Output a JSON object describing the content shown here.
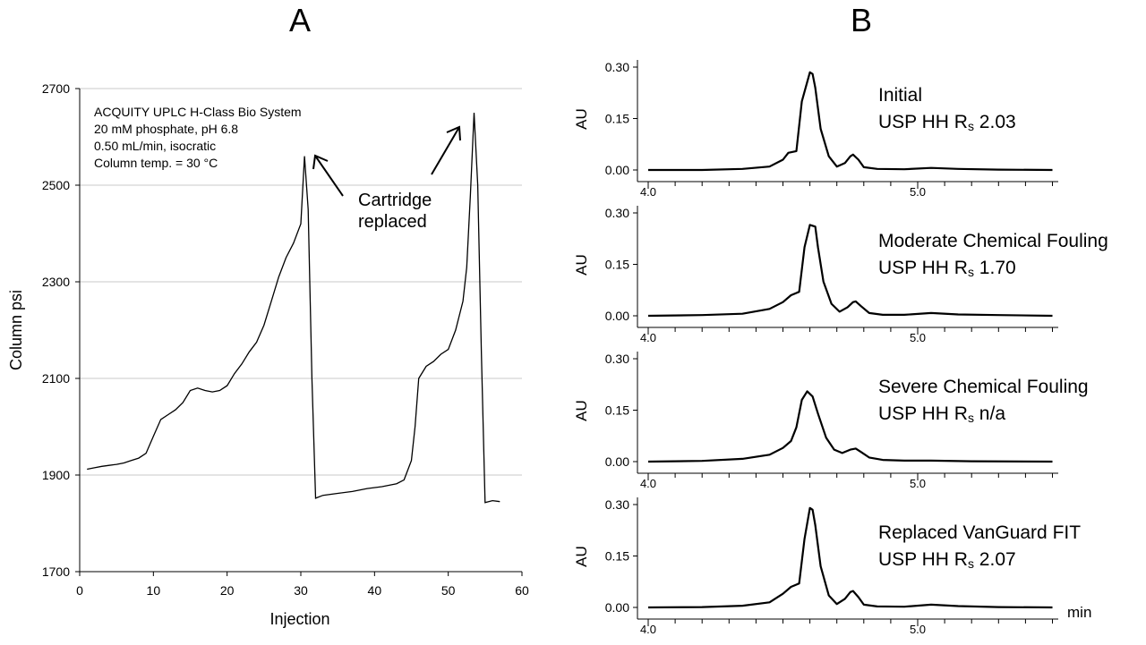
{
  "panel_a": {
    "label": "A",
    "annotation_lines": [
      "ACQUITY UPLC H-Class Bio System",
      "20 mM phosphate, pH 6.8",
      "0.50 mL/min, isocratic",
      "Column temp. = 30 °C"
    ],
    "callout_lines": [
      "Cartridge",
      "replaced"
    ]
  },
  "panel_b": {
    "label": "B",
    "x_unit": "min"
  },
  "colors": {
    "line": "#000000",
    "grid": "#c8c8c8"
  },
  "chart_data": [
    {
      "type": "line",
      "title": "",
      "xlabel": "Injection",
      "ylabel": "Column psi",
      "xlim": [
        0,
        60
      ],
      "ylim": [
        1700,
        2700
      ],
      "xticks": [
        0,
        10,
        20,
        30,
        40,
        50,
        60
      ],
      "yticks": [
        1700,
        1900,
        2100,
        2300,
        2500,
        2700
      ],
      "grid": "horizontal",
      "series": [
        {
          "x": [
            1,
            2,
            3,
            4,
            5,
            6,
            7,
            8,
            9,
            10,
            11,
            12,
            13,
            14,
            15,
            16,
            17,
            18,
            19,
            20,
            21,
            22,
            23,
            24,
            25,
            26,
            27,
            28,
            29,
            30,
            30.5,
            31,
            31.5,
            32,
            33,
            35,
            37,
            39,
            41,
            43,
            44,
            45,
            45.5,
            46,
            47,
            48,
            49,
            50,
            51,
            52,
            52.5,
            53,
            53.5,
            54,
            54.5,
            55,
            56,
            57
          ],
          "y": [
            1912,
            1915,
            1918,
            1920,
            1922,
            1925,
            1930,
            1935,
            1945,
            1980,
            2015,
            2025,
            2035,
            2050,
            2075,
            2080,
            2075,
            2072,
            2075,
            2085,
            2110,
            2130,
            2155,
            2175,
            2210,
            2260,
            2310,
            2350,
            2380,
            2420,
            2560,
            2450,
            2100,
            1852,
            1858,
            1862,
            1866,
            1872,
            1876,
            1882,
            1890,
            1930,
            2000,
            2100,
            2125,
            2135,
            2150,
            2160,
            2200,
            2260,
            2330,
            2480,
            2650,
            2500,
            2150,
            1843,
            1847,
            1845
          ]
        }
      ]
    },
    {
      "type": "line",
      "title": "Initial",
      "annotation": "USP HH R",
      "annotation_sub": "s",
      "annotation_value": "2.03",
      "ylabel": "AU",
      "xlim": [
        4.0,
        5.5
      ],
      "ylim": [
        0,
        0.3
      ],
      "xticks": [
        "4.0",
        "5.0"
      ],
      "yticks": [
        "0.00",
        "0.15",
        "0.30"
      ],
      "series": [
        {
          "x": [
            4.0,
            4.2,
            4.35,
            4.45,
            4.5,
            4.52,
            4.55,
            4.57,
            4.6,
            4.61,
            4.62,
            4.64,
            4.67,
            4.7,
            4.73,
            4.75,
            4.76,
            4.78,
            4.8,
            4.85,
            4.95,
            5.05,
            5.15,
            5.3,
            5.5
          ],
          "y": [
            0.0,
            0.0,
            0.003,
            0.01,
            0.03,
            0.05,
            0.055,
            0.2,
            0.285,
            0.28,
            0.24,
            0.12,
            0.04,
            0.01,
            0.02,
            0.04,
            0.045,
            0.03,
            0.008,
            0.003,
            0.002,
            0.006,
            0.003,
            0.001,
            0.0
          ]
        }
      ]
    },
    {
      "type": "line",
      "title": "Moderate Chemical Fouling",
      "annotation": "USP HH R",
      "annotation_sub": "s",
      "annotation_value": "1.70",
      "ylabel": "AU",
      "xlim": [
        4.0,
        5.5
      ],
      "ylim": [
        0,
        0.3
      ],
      "xticks": [
        "4.0",
        "5.0"
      ],
      "yticks": [
        "0.00",
        "0.15",
        "0.30"
      ],
      "series": [
        {
          "x": [
            4.0,
            4.2,
            4.35,
            4.45,
            4.5,
            4.53,
            4.56,
            4.58,
            4.6,
            4.62,
            4.63,
            4.65,
            4.68,
            4.71,
            4.74,
            4.76,
            4.77,
            4.79,
            4.82,
            4.87,
            4.95,
            5.05,
            5.15,
            5.3,
            5.5
          ],
          "y": [
            0.0,
            0.002,
            0.006,
            0.02,
            0.04,
            0.06,
            0.07,
            0.2,
            0.265,
            0.26,
            0.2,
            0.1,
            0.035,
            0.012,
            0.025,
            0.04,
            0.042,
            0.028,
            0.008,
            0.003,
            0.003,
            0.008,
            0.004,
            0.002,
            0.0
          ]
        }
      ]
    },
    {
      "type": "line",
      "title": "Severe Chemical Fouling",
      "annotation": "USP HH R",
      "annotation_sub": "s",
      "annotation_value": "n/a",
      "ylabel": "AU",
      "xlim": [
        4.0,
        5.5
      ],
      "ylim": [
        0,
        0.3
      ],
      "xticks": [
        "4.0",
        "5.0"
      ],
      "yticks": [
        "0.00",
        "0.15",
        "0.30"
      ],
      "series": [
        {
          "x": [
            4.0,
            4.2,
            4.35,
            4.45,
            4.5,
            4.53,
            4.55,
            4.57,
            4.59,
            4.61,
            4.63,
            4.66,
            4.69,
            4.72,
            4.75,
            4.77,
            4.79,
            4.82,
            4.87,
            4.95,
            5.05,
            5.2,
            5.5
          ],
          "y": [
            0.0,
            0.002,
            0.008,
            0.02,
            0.04,
            0.06,
            0.1,
            0.18,
            0.205,
            0.19,
            0.14,
            0.07,
            0.035,
            0.025,
            0.035,
            0.038,
            0.028,
            0.012,
            0.005,
            0.003,
            0.003,
            0.001,
            0.0
          ]
        }
      ]
    },
    {
      "type": "line",
      "title": "Replaced VanGuard FIT",
      "annotation": "USP HH R",
      "annotation_sub": "s",
      "annotation_value": "2.07",
      "ylabel": "AU",
      "xlim": [
        4.0,
        5.5
      ],
      "ylim": [
        0,
        0.3
      ],
      "xticks": [
        "4.0",
        "5.0"
      ],
      "yticks": [
        "0.00",
        "0.15",
        "0.30"
      ],
      "series": [
        {
          "x": [
            4.0,
            4.2,
            4.35,
            4.45,
            4.5,
            4.53,
            4.56,
            4.58,
            4.6,
            4.61,
            4.62,
            4.64,
            4.67,
            4.7,
            4.73,
            4.75,
            4.76,
            4.78,
            4.8,
            4.85,
            4.95,
            5.05,
            5.15,
            5.3,
            5.5
          ],
          "y": [
            0.0,
            0.001,
            0.005,
            0.015,
            0.04,
            0.06,
            0.07,
            0.2,
            0.29,
            0.285,
            0.24,
            0.12,
            0.035,
            0.01,
            0.025,
            0.045,
            0.048,
            0.03,
            0.008,
            0.003,
            0.002,
            0.008,
            0.004,
            0.001,
            0.0
          ]
        }
      ]
    }
  ]
}
